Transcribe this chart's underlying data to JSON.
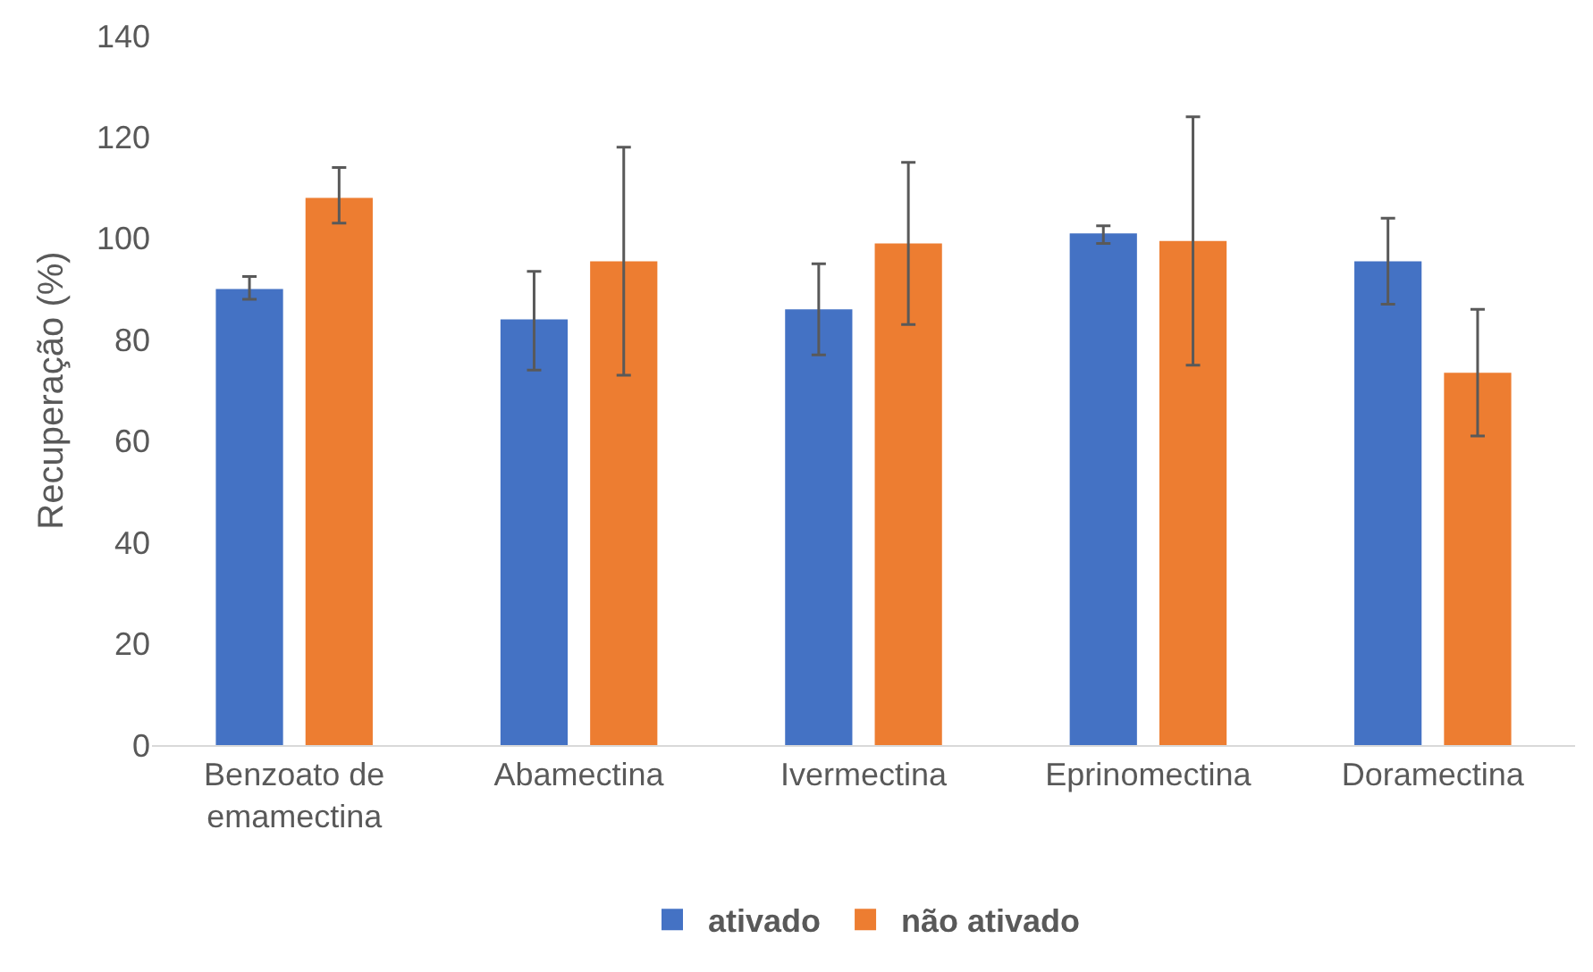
{
  "chart_data": {
    "type": "bar",
    "ylabel": "Recuperação (%)",
    "categories": [
      "Benzoato de emamectina",
      "Abamectina",
      "Ivermectina",
      "Eprinomectina",
      "Doramectina"
    ],
    "series": [
      {
        "name": "ativado",
        "color": "#4472c4",
        "values": [
          90,
          84,
          86,
          101,
          95.5
        ],
        "errors": [
          [
            88,
            92.5
          ],
          [
            74,
            93.5
          ],
          [
            77,
            95
          ],
          [
            99,
            102.5
          ],
          [
            87,
            104
          ]
        ]
      },
      {
        "name": "não ativado",
        "color": "#ed7d31",
        "values": [
          108,
          95.5,
          99,
          99.5,
          73.5
        ],
        "errors": [
          [
            103,
            114
          ],
          [
            73,
            118
          ],
          [
            83,
            115
          ],
          [
            75,
            124
          ],
          [
            61,
            86
          ]
        ]
      }
    ],
    "ylim": [
      0,
      140
    ],
    "yticks": [
      0,
      20,
      40,
      60,
      80,
      100,
      120,
      140
    ],
    "grid": false,
    "legend": "bottom"
  }
}
